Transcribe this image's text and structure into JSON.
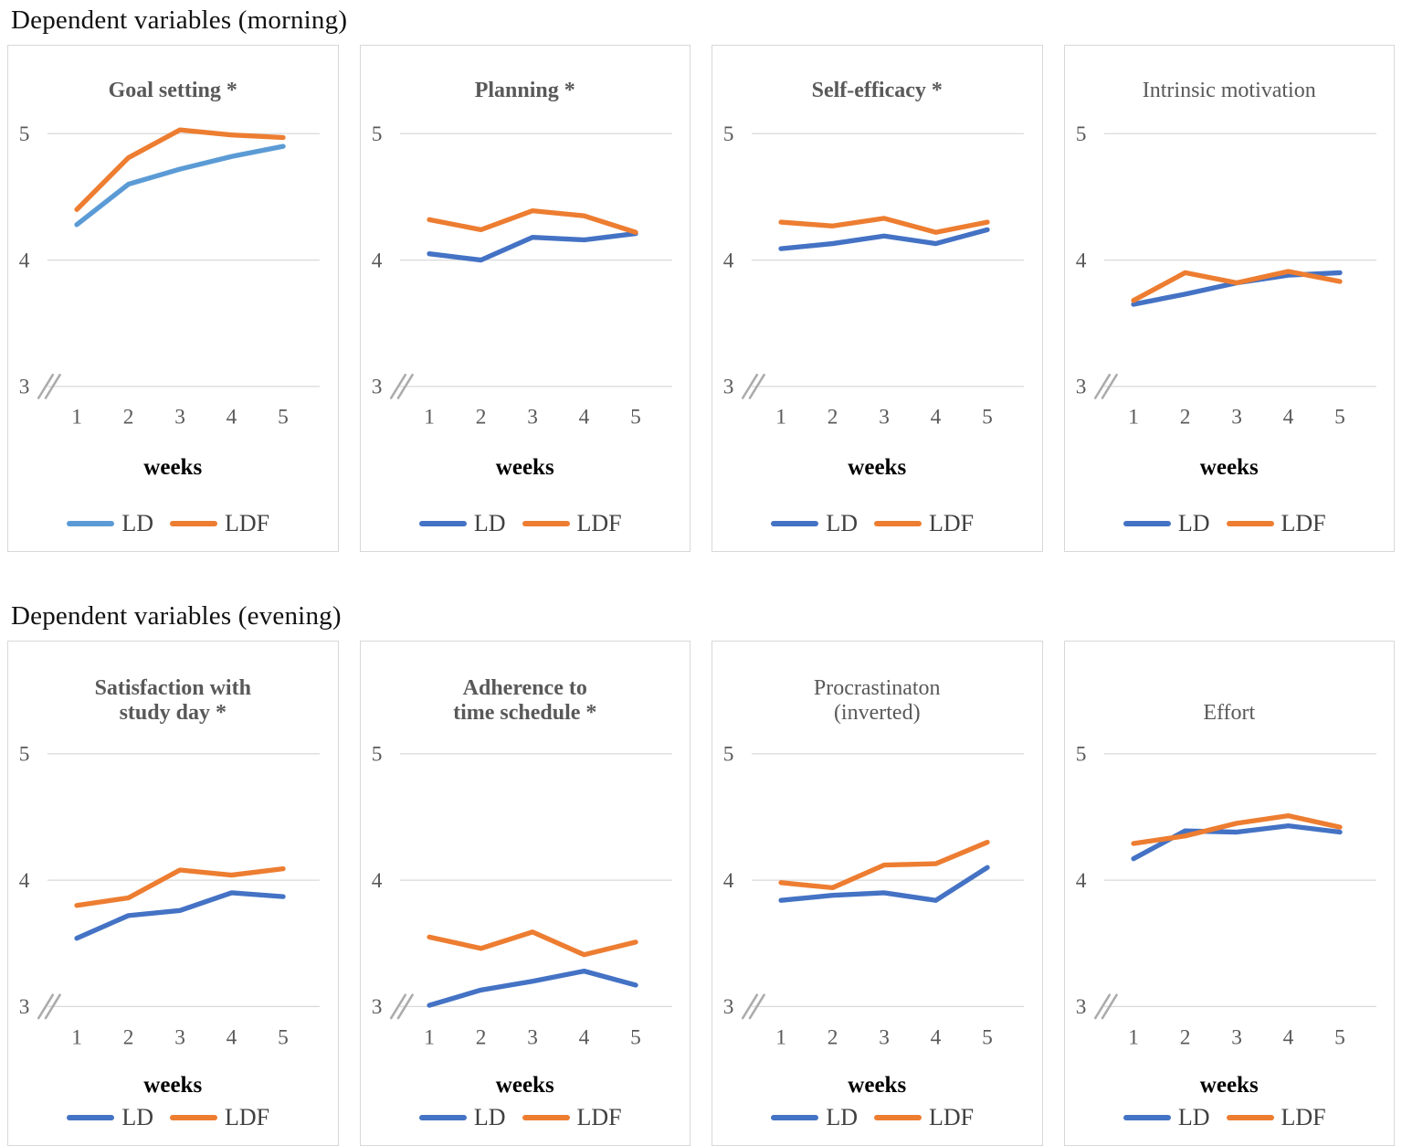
{
  "page": {
    "sections": [
      {
        "heading": "Dependent variables (morning)",
        "chart_indexes": [
          0,
          1,
          2,
          3
        ]
      },
      {
        "heading": "Dependent variables (evening)",
        "chart_indexes": [
          4,
          5,
          6,
          7
        ]
      }
    ]
  },
  "colors": {
    "gridline": "#d9d9d9",
    "panel_border": "#d8d8d8",
    "axis_break": "#ababab",
    "tick_label": "#595959",
    "title": "#595959",
    "xlabel": "#000000",
    "legend_label": "#404040",
    "ld_blue": "#4472C4",
    "ld_light_blue": "#5B9BD5",
    "ldf_orange": "#ED7D31"
  },
  "chart_data": [
    {
      "type": "line",
      "title": "Goal setting *",
      "title_lines": [
        "Goal setting *"
      ],
      "title_bold": true,
      "x": [
        "1",
        "2",
        "3",
        "4",
        "5"
      ],
      "xlabel": "weeks",
      "ylim": [
        3,
        5
      ],
      "yticks": [
        "5",
        "4",
        "3"
      ],
      "axis_break": true,
      "legend_position": "bottom",
      "series": [
        {
          "name": "LD",
          "color": "#5B9BD5",
          "values": [
            4.28,
            4.6,
            4.72,
            4.82,
            4.9
          ]
        },
        {
          "name": "LDF",
          "color": "#ED7D31",
          "values": [
            4.4,
            4.81,
            5.03,
            4.99,
            4.97
          ]
        }
      ]
    },
    {
      "type": "line",
      "title": "Planning *",
      "title_lines": [
        "Planning *"
      ],
      "title_bold": true,
      "x": [
        "1",
        "2",
        "3",
        "4",
        "5"
      ],
      "xlabel": "weeks",
      "ylim": [
        3,
        5
      ],
      "yticks": [
        "5",
        "4",
        "3"
      ],
      "axis_break": true,
      "legend_position": "bottom",
      "series": [
        {
          "name": "LD",
          "color": "#4472C4",
          "values": [
            4.05,
            4.0,
            4.18,
            4.16,
            4.21
          ]
        },
        {
          "name": "LDF",
          "color": "#ED7D31",
          "values": [
            4.32,
            4.24,
            4.39,
            4.35,
            4.22
          ]
        }
      ]
    },
    {
      "type": "line",
      "title": "Self-efficacy *",
      "title_lines": [
        "Self-efficacy *"
      ],
      "title_bold": true,
      "x": [
        "1",
        "2",
        "3",
        "4",
        "5"
      ],
      "xlabel": "weeks",
      "ylim": [
        3,
        5
      ],
      "yticks": [
        "5",
        "4",
        "3"
      ],
      "axis_break": true,
      "legend_position": "bottom",
      "series": [
        {
          "name": "LD",
          "color": "#4472C4",
          "values": [
            4.09,
            4.13,
            4.19,
            4.13,
            4.24
          ]
        },
        {
          "name": "LDF",
          "color": "#ED7D31",
          "values": [
            4.3,
            4.27,
            4.33,
            4.22,
            4.3
          ]
        }
      ]
    },
    {
      "type": "line",
      "title": "Intrinsic motivation",
      "title_lines": [
        "Intrinsic motivation"
      ],
      "title_bold": false,
      "x": [
        "1",
        "2",
        "3",
        "4",
        "5"
      ],
      "xlabel": "weeks",
      "ylim": [
        3,
        5
      ],
      "yticks": [
        "5",
        "4",
        "3"
      ],
      "axis_break": true,
      "legend_position": "bottom",
      "series": [
        {
          "name": "LD",
          "color": "#4472C4",
          "values": [
            3.65,
            3.73,
            3.82,
            3.88,
            3.9
          ]
        },
        {
          "name": "LDF",
          "color": "#ED7D31",
          "values": [
            3.68,
            3.9,
            3.82,
            3.91,
            3.83
          ]
        }
      ]
    },
    {
      "type": "line",
      "title": "Satisfaction with study day *",
      "title_lines": [
        "Satisfaction with",
        "study day *"
      ],
      "title_bold": true,
      "x": [
        "1",
        "2",
        "3",
        "4",
        "5"
      ],
      "xlabel": "weeks",
      "ylim": [
        3,
        5
      ],
      "yticks": [
        "5",
        "4",
        "3"
      ],
      "axis_break": true,
      "legend_position": "bottom",
      "series": [
        {
          "name": "LD",
          "color": "#4472C4",
          "values": [
            3.54,
            3.72,
            3.76,
            3.9,
            3.87
          ]
        },
        {
          "name": "LDF",
          "color": "#ED7D31",
          "values": [
            3.8,
            3.86,
            4.08,
            4.04,
            4.09
          ]
        }
      ]
    },
    {
      "type": "line",
      "title": "Adherence to time schedule *",
      "title_lines": [
        "Adherence to",
        "time schedule *"
      ],
      "title_bold": true,
      "x": [
        "1",
        "2",
        "3",
        "4",
        "5"
      ],
      "xlabel": "weeks",
      "ylim": [
        3,
        5
      ],
      "yticks": [
        "5",
        "4",
        "3"
      ],
      "axis_break": true,
      "legend_position": "bottom",
      "series": [
        {
          "name": "LD",
          "color": "#4472C4",
          "values": [
            3.01,
            3.13,
            3.2,
            3.28,
            3.17
          ]
        },
        {
          "name": "LDF",
          "color": "#ED7D31",
          "values": [
            3.55,
            3.46,
            3.59,
            3.41,
            3.51
          ]
        }
      ]
    },
    {
      "type": "line",
      "title": "Procrastinaton (inverted)",
      "title_lines": [
        "Procrastinaton",
        "(inverted)"
      ],
      "title_bold": false,
      "x": [
        "1",
        "2",
        "3",
        "4",
        "5"
      ],
      "xlabel": "weeks",
      "ylim": [
        3,
        5
      ],
      "yticks": [
        "5",
        "4",
        "3"
      ],
      "axis_break": true,
      "legend_position": "bottom",
      "series": [
        {
          "name": "LD",
          "color": "#4472C4",
          "values": [
            3.84,
            3.88,
            3.9,
            3.84,
            4.1
          ]
        },
        {
          "name": "LDF",
          "color": "#ED7D31",
          "values": [
            3.98,
            3.94,
            4.12,
            4.13,
            4.3
          ]
        }
      ]
    },
    {
      "type": "line",
      "title": "Effort",
      "title_lines": [
        "Effort"
      ],
      "title_bold": false,
      "x": [
        "1",
        "2",
        "3",
        "4",
        "5"
      ],
      "xlabel": "weeks",
      "ylim": [
        3,
        5
      ],
      "yticks": [
        "5",
        "4",
        "3"
      ],
      "axis_break": true,
      "legend_position": "bottom",
      "series": [
        {
          "name": "LD",
          "color": "#4472C4",
          "values": [
            4.17,
            4.39,
            4.38,
            4.43,
            4.38
          ]
        },
        {
          "name": "LDF",
          "color": "#ED7D31",
          "values": [
            4.29,
            4.35,
            4.45,
            4.51,
            4.42
          ]
        }
      ]
    }
  ]
}
